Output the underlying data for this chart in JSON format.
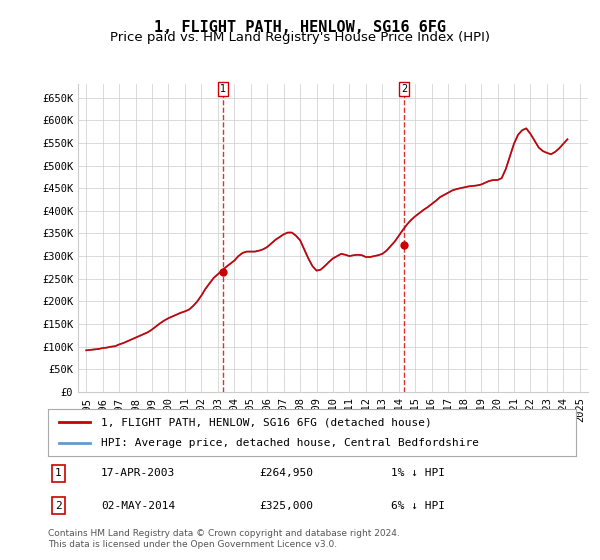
{
  "title": "1, FLIGHT PATH, HENLOW, SG16 6FG",
  "subtitle": "Price paid vs. HM Land Registry's House Price Index (HPI)",
  "ylabel_ticks": [
    "£0",
    "£50K",
    "£100K",
    "£150K",
    "£200K",
    "£250K",
    "£300K",
    "£350K",
    "£400K",
    "£450K",
    "£500K",
    "£550K",
    "£600K",
    "£650K"
  ],
  "ytick_values": [
    0,
    50000,
    100000,
    150000,
    200000,
    250000,
    300000,
    350000,
    400000,
    450000,
    500000,
    550000,
    600000,
    650000
  ],
  "ylim": [
    0,
    680000
  ],
  "xlim_start": 1994.5,
  "xlim_end": 2025.5,
  "xtick_years": [
    1995,
    1996,
    1997,
    1998,
    1999,
    2000,
    2001,
    2002,
    2003,
    2004,
    2005,
    2006,
    2007,
    2008,
    2009,
    2010,
    2011,
    2012,
    2013,
    2014,
    2015,
    2016,
    2017,
    2018,
    2019,
    2020,
    2021,
    2022,
    2023,
    2024,
    2025
  ],
  "hpi_x": [
    1995.0,
    1995.25,
    1995.5,
    1995.75,
    1996.0,
    1996.25,
    1996.5,
    1996.75,
    1997.0,
    1997.25,
    1997.5,
    1997.75,
    1998.0,
    1998.25,
    1998.5,
    1998.75,
    1999.0,
    1999.25,
    1999.5,
    1999.75,
    2000.0,
    2000.25,
    2000.5,
    2000.75,
    2001.0,
    2001.25,
    2001.5,
    2001.75,
    2002.0,
    2002.25,
    2002.5,
    2002.75,
    2003.0,
    2003.25,
    2003.5,
    2003.75,
    2004.0,
    2004.25,
    2004.5,
    2004.75,
    2005.0,
    2005.25,
    2005.5,
    2005.75,
    2006.0,
    2006.25,
    2006.5,
    2006.75,
    2007.0,
    2007.25,
    2007.5,
    2007.75,
    2008.0,
    2008.25,
    2008.5,
    2008.75,
    2009.0,
    2009.25,
    2009.5,
    2009.75,
    2010.0,
    2010.25,
    2010.5,
    2010.75,
    2011.0,
    2011.25,
    2011.5,
    2011.75,
    2012.0,
    2012.25,
    2012.5,
    2012.75,
    2013.0,
    2013.25,
    2013.5,
    2013.75,
    2014.0,
    2014.25,
    2014.5,
    2014.75,
    2015.0,
    2015.25,
    2015.5,
    2015.75,
    2016.0,
    2016.25,
    2016.5,
    2016.75,
    2017.0,
    2017.25,
    2017.5,
    2017.75,
    2018.0,
    2018.25,
    2018.5,
    2018.75,
    2019.0,
    2019.25,
    2019.5,
    2019.75,
    2020.0,
    2020.25,
    2020.5,
    2020.75,
    2021.0,
    2021.25,
    2021.5,
    2021.75,
    2022.0,
    2022.25,
    2022.5,
    2022.75,
    2023.0,
    2023.25,
    2023.5,
    2023.75,
    2024.0,
    2024.25
  ],
  "hpi_y": [
    92000,
    93000,
    94000,
    95000,
    97000,
    98000,
    100000,
    101000,
    105000,
    108000,
    112000,
    116000,
    120000,
    124000,
    128000,
    132000,
    138000,
    145000,
    152000,
    158000,
    163000,
    167000,
    171000,
    175000,
    178000,
    182000,
    190000,
    200000,
    213000,
    228000,
    240000,
    252000,
    260000,
    268000,
    276000,
    283000,
    290000,
    300000,
    307000,
    310000,
    310000,
    310000,
    312000,
    315000,
    320000,
    328000,
    336000,
    342000,
    348000,
    352000,
    352000,
    345000,
    335000,
    315000,
    295000,
    278000,
    268000,
    270000,
    278000,
    287000,
    295000,
    300000,
    305000,
    303000,
    300000,
    302000,
    303000,
    302000,
    298000,
    298000,
    300000,
    302000,
    305000,
    312000,
    322000,
    332000,
    345000,
    358000,
    370000,
    380000,
    388000,
    395000,
    402000,
    408000,
    415000,
    422000,
    430000,
    435000,
    440000,
    445000,
    448000,
    450000,
    452000,
    454000,
    455000,
    456000,
    458000,
    462000,
    466000,
    468000,
    468000,
    472000,
    492000,
    520000,
    548000,
    568000,
    578000,
    582000,
    570000,
    555000,
    540000,
    532000,
    528000,
    525000,
    530000,
    538000,
    548000,
    558000
  ],
  "sale1_x": 2003.29,
  "sale1_y": 264950,
  "sale1_label": "1",
  "sale2_x": 2014.33,
  "sale2_y": 325000,
  "sale2_label": "2",
  "property_color": "#cc0000",
  "hpi_color": "#6699cc",
  "sale_marker_color": "#cc0000",
  "vline_color": "#cc0000",
  "grid_color": "#cccccc",
  "bg_color": "#ffffff",
  "legend_label_property": "1, FLIGHT PATH, HENLOW, SG16 6FG (detached house)",
  "legend_label_hpi": "HPI: Average price, detached house, Central Bedfordshire",
  "table_row1": [
    "1",
    "17-APR-2003",
    "£264,950",
    "1% ↓ HPI"
  ],
  "table_row2": [
    "2",
    "02-MAY-2014",
    "£325,000",
    "6% ↓ HPI"
  ],
  "footer_text": "Contains HM Land Registry data © Crown copyright and database right 2024.\nThis data is licensed under the Open Government Licence v3.0.",
  "title_fontsize": 11,
  "subtitle_fontsize": 9.5,
  "tick_fontsize": 7.5,
  "legend_fontsize": 8,
  "table_fontsize": 8,
  "footer_fontsize": 6.5
}
